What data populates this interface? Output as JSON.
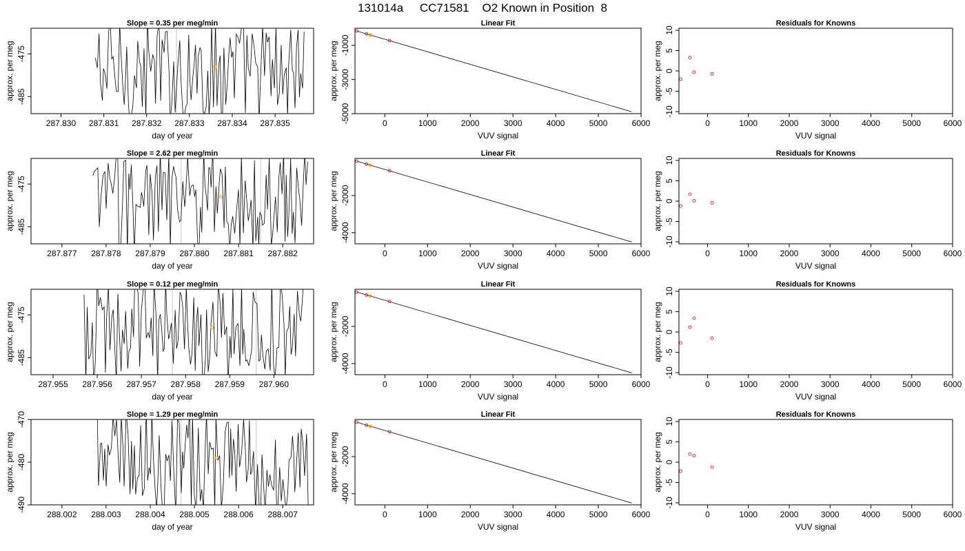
{
  "figure": {
    "title": "131014a     CC71581    O2 Known in Position  8"
  },
  "chart_data": [
    {
      "type": "line",
      "row": 1,
      "col": 1,
      "title": "Slope =  0.35  per meg/min",
      "xlabel": "day of year",
      "ylabel": "approx. per meg",
      "xlim": [
        287.8293,
        287.8359
      ],
      "ylim": [
        -489,
        -469
      ],
      "xticks": [
        287.83,
        287.831,
        287.832,
        287.833,
        287.834,
        287.835
      ],
      "xtick_labels": [
        "287.830",
        "287.831",
        "287.832",
        "287.833",
        "287.834",
        "287.835"
      ],
      "yticks": [
        -475,
        -485
      ],
      "ytick_labels": [
        "-475",
        "-485"
      ],
      "trace_range": [
        287.8308,
        287.8357
      ],
      "vlines": [
        287.8327
      ],
      "highlight_point": {
        "x": 287.8336,
        "y": -478
      }
    },
    {
      "type": "scatter",
      "row": 1,
      "col": 2,
      "title": "Linear Fit",
      "xlabel": "VUV signal",
      "ylabel": "approx. per meg",
      "xlim": [
        -700,
        6000
      ],
      "ylim": [
        -5000,
        0
      ],
      "xticks": [
        0,
        1000,
        2000,
        3000,
        4000,
        5000,
        6000
      ],
      "xtick_labels": [
        "0",
        "1000",
        "2000",
        "3000",
        "4000",
        "5000",
        "6000"
      ],
      "yticks": [
        -1000,
        -3000,
        -5000
      ],
      "ytick_labels": [
        "-1000",
        "-3000",
        "-5000"
      ],
      "line": {
        "x": [
          -660,
          5780
        ],
        "y": [
          -160,
          -4890
        ]
      },
      "points": [
        {
          "x": -660,
          "y": -160
        },
        {
          "x": -430,
          "y": -330
        },
        {
          "x": 110,
          "y": -720
        }
      ],
      "highlight_points": [
        {
          "x": -340,
          "y": -390
        }
      ]
    },
    {
      "type": "scatter",
      "row": 1,
      "col": 3,
      "title": "Residuals for Knowns",
      "xlabel": "VUV signal",
      "ylabel": "approx. per meg",
      "xlim": [
        -700,
        6000
      ],
      "ylim": [
        -10.5,
        10.5
      ],
      "xticks": [
        0,
        1000,
        2000,
        3000,
        4000,
        5000,
        6000
      ],
      "xtick_labels": [
        "0",
        "1000",
        "2000",
        "3000",
        "4000",
        "5000",
        "6000"
      ],
      "yticks": [
        -10,
        -5,
        0,
        5,
        10
      ],
      "ytick_labels": [
        "-10",
        "-5",
        "0",
        "5",
        "10"
      ],
      "points": [
        {
          "x": -660,
          "y": -2.0
        },
        {
          "x": -430,
          "y": 3.3
        },
        {
          "x": -330,
          "y": -0.3
        },
        {
          "x": 110,
          "y": -0.7
        }
      ]
    },
    {
      "type": "line",
      "row": 2,
      "col": 1,
      "title": "Slope =  2.62  per meg/min",
      "xlabel": "day of year",
      "ylabel": "approx. per meg",
      "xlim": [
        287.8763,
        287.8827
      ],
      "ylim": [
        -489,
        -469
      ],
      "xticks": [
        287.877,
        287.878,
        287.879,
        287.88,
        287.881,
        287.882
      ],
      "xtick_labels": [
        "287.877",
        "287.878",
        "287.879",
        "287.880",
        "287.881",
        "287.882"
      ],
      "yticks": [
        -475,
        -485
      ],
      "ytick_labels": [
        "-475",
        "-485"
      ],
      "trace_range": [
        287.8777,
        287.8826
      ],
      "vlines": [
        287.8797,
        287.8815
      ],
      "highlight_point": {
        "x": 287.8806,
        "y": -478
      }
    },
    {
      "type": "scatter",
      "row": 2,
      "col": 2,
      "title": "Linear Fit",
      "xlabel": "VUV signal",
      "ylabel": "approx. per meg",
      "xlim": [
        -700,
        6000
      ],
      "ylim": [
        -4600,
        0
      ],
      "xticks": [
        0,
        1000,
        2000,
        3000,
        4000,
        5000,
        6000
      ],
      "xtick_labels": [
        "0",
        "1000",
        "2000",
        "3000",
        "4000",
        "5000",
        "6000"
      ],
      "yticks": [
        -2000,
        -4000
      ],
      "ytick_labels": [
        "-2000",
        "-4000"
      ],
      "line": {
        "x": [
          -660,
          5780
        ],
        "y": [
          -150,
          -4500
        ]
      },
      "points": [
        {
          "x": -660,
          "y": -150
        },
        {
          "x": -430,
          "y": -310
        },
        {
          "x": 110,
          "y": -660
        }
      ],
      "highlight_points": [
        {
          "x": -340,
          "y": -370
        }
      ]
    },
    {
      "type": "scatter",
      "row": 2,
      "col": 3,
      "title": "Residuals for Knowns",
      "xlabel": "VUV signal",
      "ylabel": "approx. per meg",
      "xlim": [
        -700,
        6000
      ],
      "ylim": [
        -10.5,
        10.5
      ],
      "xticks": [
        0,
        1000,
        2000,
        3000,
        4000,
        5000,
        6000
      ],
      "xtick_labels": [
        "0",
        "1000",
        "2000",
        "3000",
        "4000",
        "5000",
        "6000"
      ],
      "yticks": [
        -10,
        -5,
        0,
        5,
        10
      ],
      "ytick_labels": [
        "-10",
        "-5",
        "0",
        "5",
        "10"
      ],
      "points": [
        {
          "x": -660,
          "y": -1.2
        },
        {
          "x": -430,
          "y": 1.7
        },
        {
          "x": -330,
          "y": 0.1
        },
        {
          "x": 110,
          "y": -0.4
        }
      ]
    },
    {
      "type": "line",
      "row": 3,
      "col": 1,
      "title": "Slope =  0.12  per meg/min",
      "xlabel": "day of year",
      "ylabel": "approx. per meg",
      "xlim": [
        287.9545,
        287.9609
      ],
      "ylim": [
        -489,
        -469
      ],
      "xticks": [
        287.955,
        287.956,
        287.957,
        287.958,
        287.959,
        287.96
      ],
      "xtick_labels": [
        "287.955",
        "287.956",
        "287.957",
        "287.958",
        "287.959",
        "287.960"
      ],
      "yticks": [
        -475,
        -485
      ],
      "ytick_labels": [
        "-475",
        "-485"
      ],
      "trace_range": [
        287.9557,
        287.9607
      ],
      "vlines": [
        287.9577,
        287.9596
      ],
      "highlight_point": {
        "x": 287.9586,
        "y": -478
      }
    },
    {
      "type": "scatter",
      "row": 3,
      "col": 2,
      "title": "Linear Fit",
      "xlabel": "VUV signal",
      "ylabel": "approx. per meg",
      "xlim": [
        -700,
        6000
      ],
      "ylim": [
        -4600,
        0
      ],
      "xticks": [
        0,
        1000,
        2000,
        3000,
        4000,
        5000,
        6000
      ],
      "xtick_labels": [
        "0",
        "1000",
        "2000",
        "3000",
        "4000",
        "5000",
        "6000"
      ],
      "yticks": [
        -2000,
        -4000
      ],
      "ytick_labels": [
        "-2000",
        "-4000"
      ],
      "line": {
        "x": [
          -660,
          5780
        ],
        "y": [
          -150,
          -4500
        ]
      },
      "points": [
        {
          "x": -660,
          "y": -150
        },
        {
          "x": -430,
          "y": -310
        },
        {
          "x": 110,
          "y": -660
        }
      ],
      "highlight_points": [
        {
          "x": -340,
          "y": -370
        }
      ]
    },
    {
      "type": "scatter",
      "row": 3,
      "col": 3,
      "title": "Residuals for Knowns",
      "xlabel": "VUV signal",
      "ylabel": "approx. per meg",
      "xlim": [
        -700,
        6000
      ],
      "ylim": [
        -10.5,
        10.5
      ],
      "xticks": [
        0,
        1000,
        2000,
        3000,
        4000,
        5000,
        6000
      ],
      "xtick_labels": [
        "0",
        "1000",
        "2000",
        "3000",
        "4000",
        "5000",
        "6000"
      ],
      "yticks": [
        -10,
        -5,
        0,
        5,
        10
      ],
      "ytick_labels": [
        "-10",
        "-5",
        "0",
        "5",
        "10"
      ],
      "points": [
        {
          "x": -660,
          "y": -2.7
        },
        {
          "x": -430,
          "y": 1.2
        },
        {
          "x": -330,
          "y": 3.4
        },
        {
          "x": 110,
          "y": -1.5
        }
      ]
    },
    {
      "type": "line",
      "row": 4,
      "col": 1,
      "title": "Slope =  1.29  per meg/min",
      "xlabel": "day of year",
      "ylabel": "approx. per meg",
      "xlim": [
        288.0013,
        288.0077
      ],
      "ylim": [
        -490,
        -470
      ],
      "xticks": [
        288.002,
        288.003,
        288.004,
        288.005,
        288.006,
        288.007
      ],
      "xtick_labels": [
        "288.002",
        "288.003",
        "288.004",
        "288.005",
        "288.006",
        "288.007"
      ],
      "yticks": [
        -470,
        -480,
        -490
      ],
      "ytick_labels": [
        "-470",
        "-480",
        "-490"
      ],
      "trace_range": [
        288.0028,
        288.0076
      ],
      "vlines": [
        288.0047,
        288.0064
      ],
      "highlight_point": {
        "x": 288.0055,
        "y": -479
      }
    },
    {
      "type": "scatter",
      "row": 4,
      "col": 2,
      "title": "Linear Fit",
      "xlabel": "VUV signal",
      "ylabel": "approx. per meg",
      "xlim": [
        -700,
        6000
      ],
      "ylim": [
        -4600,
        0
      ],
      "xticks": [
        0,
        1000,
        2000,
        3000,
        4000,
        5000,
        6000
      ],
      "xtick_labels": [
        "0",
        "1000",
        "2000",
        "3000",
        "4000",
        "5000",
        "6000"
      ],
      "yticks": [
        -2000,
        -4000
      ],
      "ytick_labels": [
        "-2000",
        "-4000"
      ],
      "line": {
        "x": [
          -660,
          5780
        ],
        "y": [
          -150,
          -4500
        ]
      },
      "points": [
        {
          "x": -660,
          "y": -150
        },
        {
          "x": -430,
          "y": -310
        },
        {
          "x": 110,
          "y": -660
        }
      ],
      "highlight_points": [
        {
          "x": -340,
          "y": -370
        }
      ]
    },
    {
      "type": "scatter",
      "row": 4,
      "col": 3,
      "title": "Residuals for Knowns",
      "xlabel": "VUV signal",
      "ylabel": "approx. per meg",
      "xlim": [
        -700,
        6000
      ],
      "ylim": [
        -10.5,
        10.5
      ],
      "xticks": [
        0,
        1000,
        2000,
        3000,
        4000,
        5000,
        6000
      ],
      "xtick_labels": [
        "0",
        "1000",
        "2000",
        "3000",
        "4000",
        "5000",
        "6000"
      ],
      "yticks": [
        -10,
        -5,
        0,
        5,
        10
      ],
      "ytick_labels": [
        "-10",
        "-5",
        "0",
        "5",
        "10"
      ],
      "points": [
        {
          "x": -660,
          "y": -2.2
        },
        {
          "x": -430,
          "y": 2.0
        },
        {
          "x": -330,
          "y": 1.6
        },
        {
          "x": 110,
          "y": -1.2
        }
      ]
    }
  ]
}
